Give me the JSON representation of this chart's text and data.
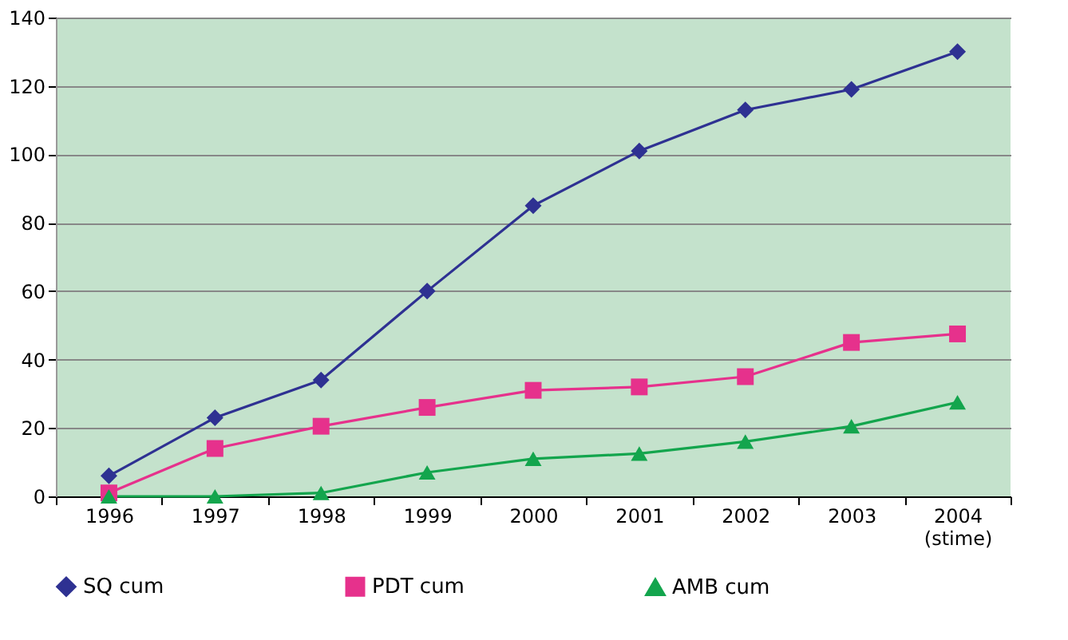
{
  "chart_data": {
    "type": "line",
    "categories": [
      "1996",
      "1997",
      "1998",
      "1999",
      "2000",
      "2001",
      "2002",
      "2003",
      "2004\n(stime)"
    ],
    "series": [
      {
        "name": "SQ cum",
        "color": "#2e3192",
        "marker": "diamond",
        "values": [
          6,
          23,
          34,
          60,
          85,
          101,
          113,
          119,
          130
        ]
      },
      {
        "name": "PDT cum",
        "color": "#e6318c",
        "marker": "square",
        "values": [
          1,
          14,
          20.5,
          26,
          31,
          32,
          35,
          45,
          47.5
        ]
      },
      {
        "name": "AMB cum",
        "color": "#13a54d",
        "marker": "triangle",
        "values": [
          0,
          0,
          1,
          7,
          11,
          12.5,
          16,
          20.5,
          27.5
        ]
      }
    ],
    "ylim": [
      0,
      140
    ],
    "yticks": [
      0,
      20,
      40,
      60,
      80,
      100,
      120,
      140
    ],
    "grid": "y",
    "legend": "bottom",
    "line_style": "solid"
  }
}
